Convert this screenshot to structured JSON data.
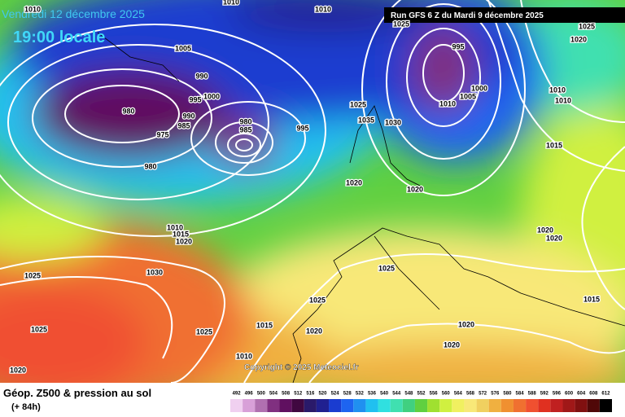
{
  "header": {
    "date": "Vendredi 12 décembre 2025",
    "time": "19:00 locale",
    "run": "Run GFS 6 Z du Mardi 9 décembre 2025"
  },
  "footer": {
    "title": "Géop. Z500 & pression au sol",
    "lead": "(+ 84h)",
    "copyright": "Copyright © 2025 Meteociel.fr"
  },
  "isobar_labels": [
    1010,
    1010,
    1010,
    1005,
    990,
    995,
    1000,
    990,
    985,
    980,
    975,
    980,
    980,
    985,
    995,
    1025,
    1035,
    1030,
    995,
    1000,
    1005,
    1010,
    1020,
    1025,
    1025,
    1010,
    1010,
    1015,
    1020,
    1020,
    1010,
    1015,
    1020,
    1030,
    1025,
    1025,
    1020,
    1025,
    1025,
    1025,
    1015,
    1020,
    1020,
    1020,
    1010,
    1020,
    1020,
    1015
  ],
  "legend": {
    "values": [
      492,
      496,
      500,
      504,
      508,
      512,
      516,
      520,
      524,
      528,
      532,
      536,
      540,
      544,
      548,
      552,
      556,
      560,
      564,
      568,
      572,
      576,
      580,
      584,
      588,
      592,
      596,
      600,
      604,
      608,
      612
    ],
    "colors": [
      "#f0d0f0",
      "#d8a0d8",
      "#b070b0",
      "#803080",
      "#601060",
      "#400840",
      "#2a1a6a",
      "#202090",
      "#1a3cd0",
      "#1e64f0",
      "#2090f0",
      "#20c0f0",
      "#30e0e0",
      "#40e0b0",
      "#40d080",
      "#60d040",
      "#a0e030",
      "#d0f040",
      "#f0f060",
      "#f8e878",
      "#f0d060",
      "#f0b040",
      "#f09030",
      "#f07030",
      "#f05030",
      "#e03020",
      "#c02020",
      "#a01818",
      "#801010",
      "#500808",
      "#000000"
    ]
  }
}
